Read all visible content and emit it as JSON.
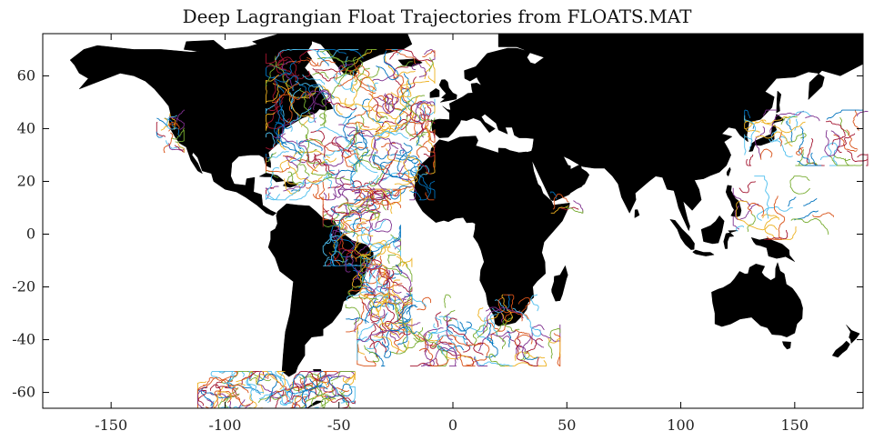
{
  "title": "Deep Lagrangian Float Trajectories from FLOATS.MAT",
  "map": {
    "projection": "equirectangular",
    "lon_range": [
      -180,
      180
    ],
    "lat_range": [
      -66,
      76
    ],
    "land_color": "#000000",
    "ocean_color": "#ffffff",
    "grid": false,
    "x_ticks": [
      -150,
      -100,
      -50,
      0,
      50,
      100,
      150
    ],
    "y_ticks": [
      -60,
      -40,
      -20,
      0,
      20,
      40,
      60
    ],
    "x_tick_labels": [
      "-150",
      "-100",
      "-50",
      "0",
      "50",
      "100",
      "150"
    ],
    "y_tick_labels": [
      "-60",
      "-40",
      "-20",
      "0",
      "20",
      "40",
      "60"
    ]
  },
  "trajectory_colors": [
    "#0072BD",
    "#D95319",
    "#EDB120",
    "#7E2F8E",
    "#77AC30",
    "#4DBEEE",
    "#A2142F"
  ],
  "float_regions": [
    {
      "lon": [
        -80,
        -10
      ],
      "lat": [
        15,
        68
      ],
      "count": 260
    },
    {
      "lon": [
        -55,
        -25
      ],
      "lat": [
        -10,
        15
      ],
      "count": 80
    },
    {
      "lon": [
        -45,
        -20
      ],
      "lat": [
        -35,
        -10
      ],
      "count": 70
    },
    {
      "lon": [
        -40,
        45
      ],
      "lat": [
        -48,
        -25
      ],
      "count": 110
    },
    {
      "lon": [
        -110,
        -45
      ],
      "lat": [
        -64,
        -54
      ],
      "count": 110
    },
    {
      "lon": [
        -128,
        -120
      ],
      "lat": [
        33,
        45
      ],
      "count": 18
    },
    {
      "lon": [
        130,
        180
      ],
      "lat": [
        28,
        45
      ],
      "count": 45
    },
    {
      "lon": [
        125,
        165
      ],
      "lat": [
        0,
        20
      ],
      "count": 20
    },
    {
      "lon": [
        45,
        55
      ],
      "lat": [
        10,
        14
      ],
      "count": 6
    }
  ]
}
